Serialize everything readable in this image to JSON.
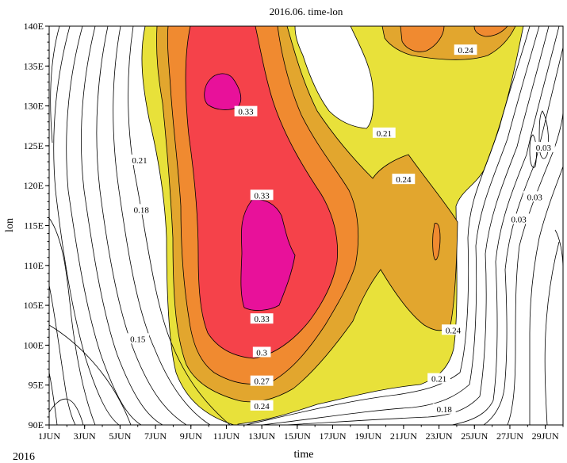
{
  "chart_data": {
    "type": "heatmap",
    "title": "2016.06. time-lon",
    "xlabel": "time",
    "ylabel": "lon",
    "corner_label": "2016",
    "x_ticks": [
      "1JUN",
      "3JUN",
      "5JUN",
      "7JUN",
      "9JUN",
      "11JUN",
      "13JUN",
      "15JUN",
      "17JUN",
      "19JUN",
      "21JUN",
      "23JUN",
      "25JUN",
      "27JUN",
      "29JUN"
    ],
    "y_ticks": [
      "90E",
      "95E",
      "100E",
      "105E",
      "110E",
      "115E",
      "120E",
      "125E",
      "130E",
      "135E",
      "140E"
    ],
    "xlim": [
      1,
      30
    ],
    "ylim": [
      90,
      140
    ],
    "contour_levels": [
      0.21,
      0.24,
      0.27,
      0.3,
      0.33
    ],
    "fill_colors": [
      "#e8e13a",
      "#e2a62e",
      "#f08a30",
      "#f5424a",
      "#e8119a"
    ],
    "line_color": "#000000",
    "contour_labels": [
      {
        "text": "0.33",
        "day": 12.1,
        "lon": 129.3
      },
      {
        "text": "0.33",
        "day": 13.0,
        "lon": 118.8
      },
      {
        "text": "0.33",
        "day": 13.0,
        "lon": 103.3
      },
      {
        "text": "0.3",
        "day": 13.0,
        "lon": 99.1
      },
      {
        "text": "0.27",
        "day": 13.0,
        "lon": 95.5
      },
      {
        "text": "0.24",
        "day": 13.0,
        "lon": 92.4
      },
      {
        "text": "0.24",
        "day": 24.5,
        "lon": 137.0
      },
      {
        "text": "0.21",
        "day": 19.9,
        "lon": 126.6
      },
      {
        "text": "0.24",
        "day": 21.0,
        "lon": 120.8
      },
      {
        "text": "0.24",
        "day": 23.8,
        "lon": 101.9
      },
      {
        "text": "0.21",
        "day": 23.0,
        "lon": 95.8
      },
      {
        "text": "0.18",
        "day": 23.3,
        "lon": 92.0
      },
      {
        "text": "0.21",
        "day": 6.1,
        "lon": 123.2
      },
      {
        "text": "0.18",
        "day": 6.2,
        "lon": 117.0
      },
      {
        "text": "0.15",
        "day": 6.0,
        "lon": 100.8
      },
      {
        "text": "0.03",
        "day": 28.9,
        "lon": 124.8
      },
      {
        "text": "0.03",
        "day": 28.4,
        "lon": 118.6
      },
      {
        "text": "0.03",
        "day": 27.5,
        "lon": 115.8
      }
    ]
  }
}
